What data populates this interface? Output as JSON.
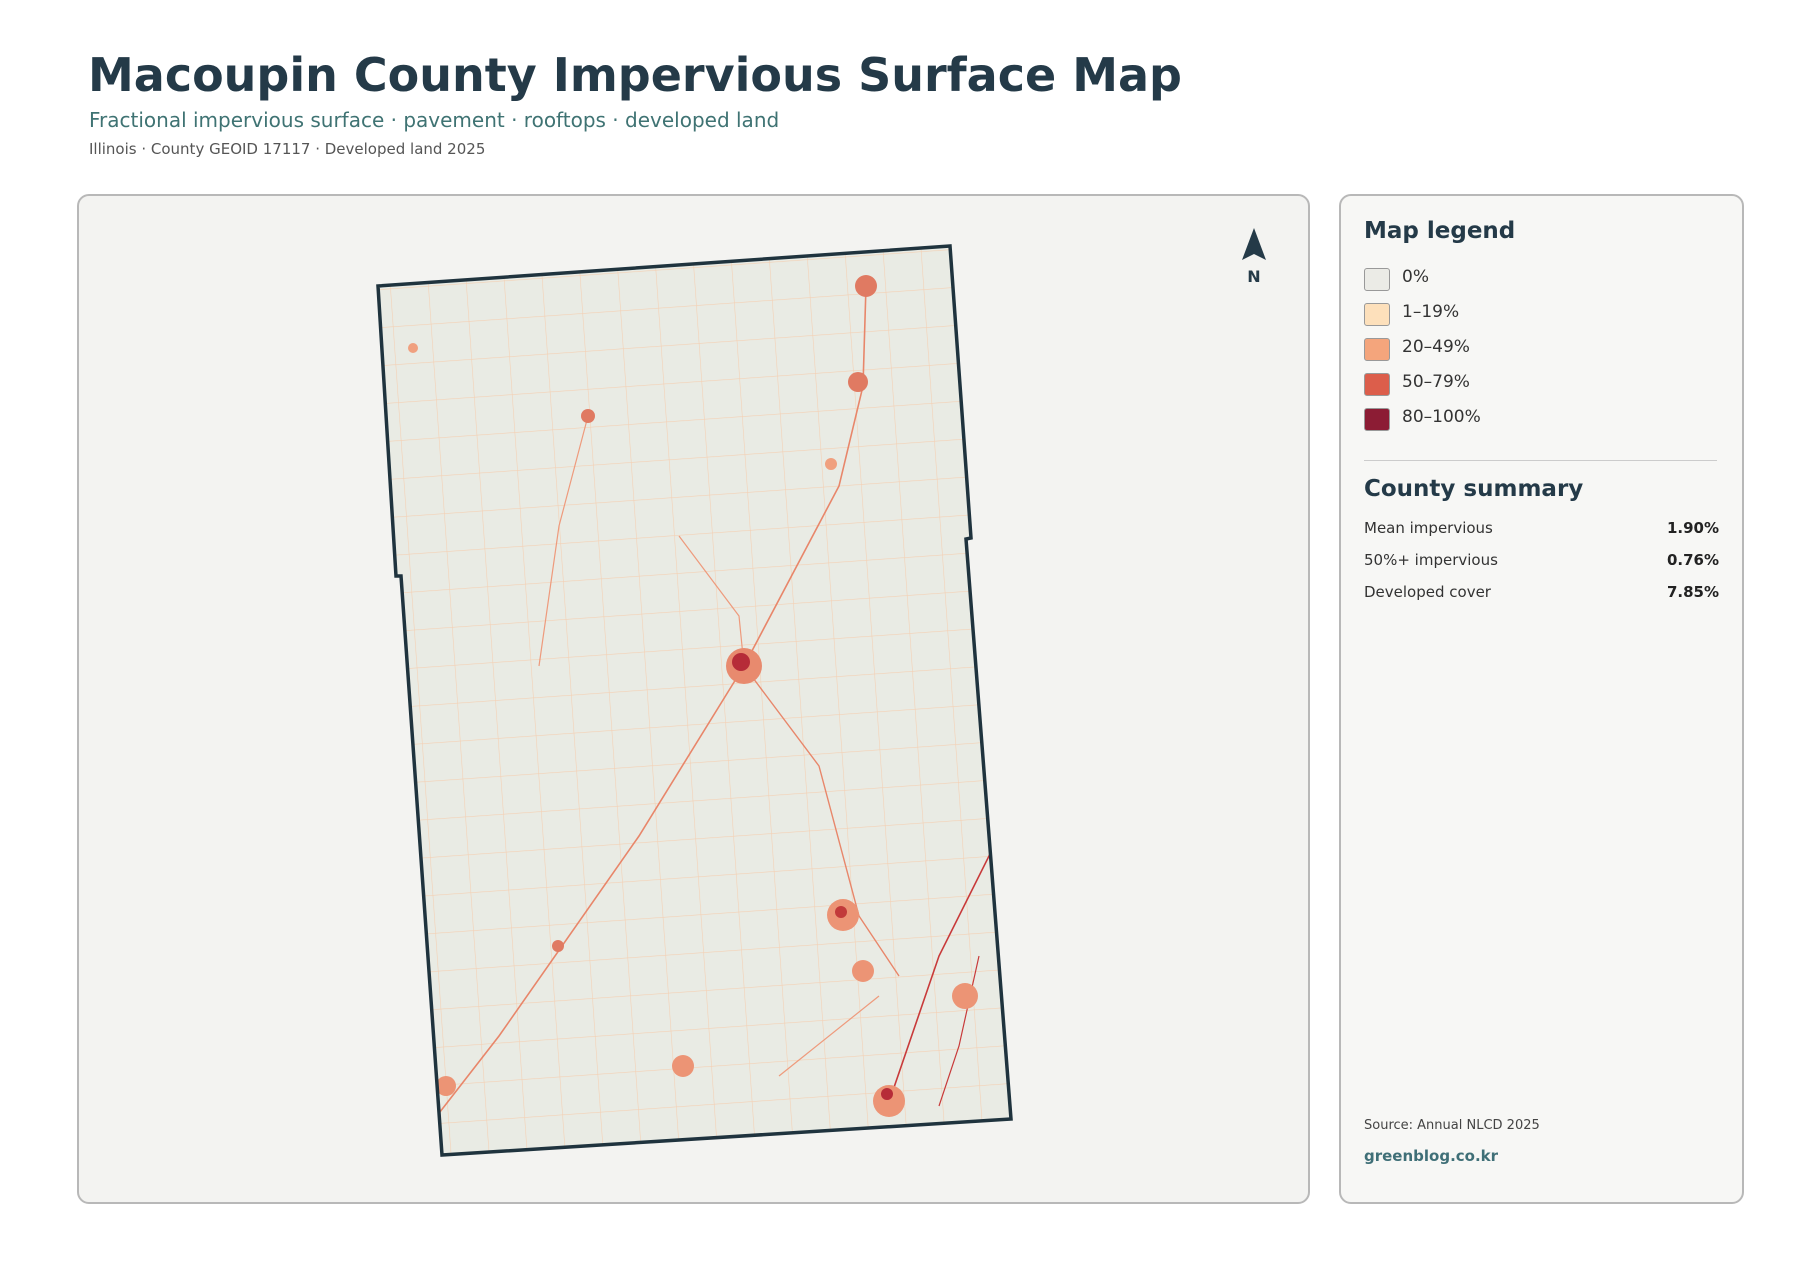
{
  "header": {
    "title": "Macoupin County Impervious Surface Map",
    "subtitle": "Fractional impervious surface · pavement · rooftops · developed land",
    "meta": "Illinois · County GEOID 17117 · Developed land 2025"
  },
  "map": {
    "north_label": "N"
  },
  "legend": {
    "title": "Map legend",
    "items": [
      {
        "label": "0%",
        "color": "#ebebe6"
      },
      {
        "label": "1–19%",
        "color": "#fde0bb"
      },
      {
        "label": "20–49%",
        "color": "#f4a57c"
      },
      {
        "label": "50–79%",
        "color": "#dc5e4b"
      },
      {
        "label": "80–100%",
        "color": "#8c1c34"
      }
    ]
  },
  "summary": {
    "title": "County summary",
    "rows": [
      {
        "label": "Mean impervious",
        "value": "1.90%"
      },
      {
        "label": "50%+ impervious",
        "value": "0.76%"
      },
      {
        "label": "Developed cover",
        "value": "7.85%"
      }
    ]
  },
  "footer": {
    "source": "Source: Annual NLCD 2025",
    "site": "greenblog.co.kr"
  }
}
